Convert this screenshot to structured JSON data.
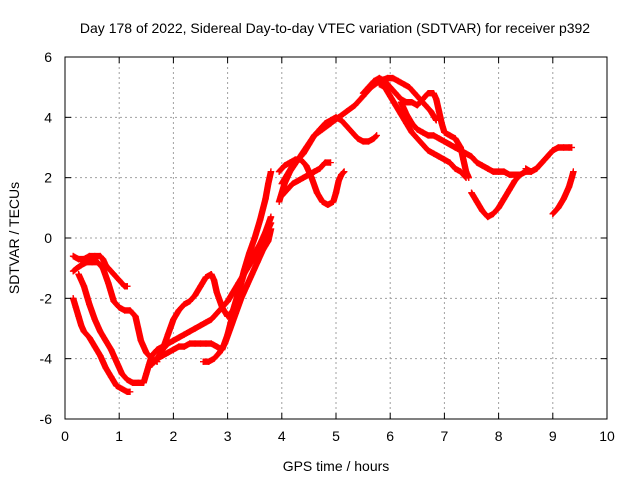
{
  "chart_data": {
    "type": "scatter",
    "title": "Day 178 of 2022, Sidereal Day-to-day VTEC variation (SDTVAR) for receiver p392",
    "xlabel": "GPS time / hours",
    "ylabel": "SDTVAR / TECUs",
    "xlim": [
      0,
      10
    ],
    "ylim": [
      -6,
      6
    ],
    "xticks": [
      "0",
      "1",
      "2",
      "3",
      "4",
      "5",
      "6",
      "7",
      "8",
      "9",
      "10"
    ],
    "yticks": [
      "-6",
      "-4",
      "-2",
      "0",
      "2",
      "4",
      "6"
    ],
    "grid": true,
    "legend": "none",
    "marker": "plus",
    "series_color": "#ff0000",
    "series": [
      {
        "points": [
          [
            0.15,
            -0.6
          ],
          [
            0.25,
            -0.7
          ],
          [
            0.35,
            -0.7
          ],
          [
            0.45,
            -0.6
          ],
          [
            0.55,
            -0.6
          ],
          [
            0.65,
            -0.6
          ],
          [
            0.7,
            -0.7
          ],
          [
            0.75,
            -0.9
          ],
          [
            0.8,
            -1.0
          ],
          [
            0.9,
            -1.2
          ],
          [
            1.0,
            -1.4
          ],
          [
            1.1,
            -1.6
          ],
          [
            1.15,
            -1.6
          ]
        ]
      },
      {
        "points": [
          [
            0.15,
            -1.1
          ],
          [
            0.22,
            -1.0
          ],
          [
            0.3,
            -0.9
          ],
          [
            0.4,
            -0.8
          ],
          [
            0.5,
            -0.8
          ],
          [
            0.6,
            -0.8
          ],
          [
            0.7,
            -1.0
          ],
          [
            0.8,
            -1.5
          ],
          [
            0.9,
            -2.1
          ],
          [
            1.0,
            -2.3
          ],
          [
            1.1,
            -2.4
          ],
          [
            1.2,
            -2.4
          ],
          [
            1.3,
            -2.6
          ],
          [
            1.35,
            -3.0
          ],
          [
            1.4,
            -3.4
          ],
          [
            1.5,
            -3.8
          ],
          [
            1.6,
            -4.0
          ],
          [
            1.7,
            -4.1
          ]
        ]
      },
      {
        "points": [
          [
            0.15,
            -2.0
          ],
          [
            0.2,
            -2.3
          ],
          [
            0.25,
            -2.6
          ],
          [
            0.3,
            -2.9
          ],
          [
            0.35,
            -3.1
          ],
          [
            0.45,
            -3.3
          ],
          [
            0.55,
            -3.6
          ],
          [
            0.65,
            -3.9
          ],
          [
            0.75,
            -4.3
          ],
          [
            0.85,
            -4.6
          ],
          [
            0.95,
            -4.9
          ],
          [
            1.05,
            -5.0
          ],
          [
            1.15,
            -5.1
          ],
          [
            1.2,
            -5.1
          ]
        ]
      },
      {
        "points": [
          [
            0.25,
            -1.2
          ],
          [
            0.35,
            -1.6
          ],
          [
            0.45,
            -2.2
          ],
          [
            0.55,
            -2.7
          ],
          [
            0.65,
            -3.1
          ],
          [
            0.75,
            -3.4
          ],
          [
            0.85,
            -3.7
          ],
          [
            0.95,
            -4.1
          ],
          [
            1.05,
            -4.5
          ],
          [
            1.15,
            -4.7
          ],
          [
            1.25,
            -4.8
          ],
          [
            1.35,
            -4.8
          ],
          [
            1.45,
            -4.8
          ],
          [
            1.5,
            -4.5
          ],
          [
            1.55,
            -4.2
          ],
          [
            1.6,
            -3.9
          ],
          [
            1.7,
            -3.7
          ],
          [
            1.8,
            -3.6
          ]
        ]
      },
      {
        "points": [
          [
            1.7,
            -4.0
          ],
          [
            1.8,
            -3.7
          ],
          [
            1.9,
            -3.5
          ],
          [
            2.0,
            -3.4
          ],
          [
            2.1,
            -3.3
          ],
          [
            2.2,
            -3.2
          ],
          [
            2.3,
            -3.1
          ],
          [
            2.4,
            -3.0
          ],
          [
            2.5,
            -2.9
          ],
          [
            2.6,
            -2.8
          ],
          [
            2.7,
            -2.7
          ],
          [
            2.8,
            -2.5
          ],
          [
            2.9,
            -2.3
          ],
          [
            3.0,
            -2.1
          ],
          [
            3.1,
            -1.8
          ],
          [
            3.2,
            -1.5
          ],
          [
            3.3,
            -1.2
          ],
          [
            3.4,
            -0.9
          ],
          [
            3.5,
            -0.6
          ],
          [
            3.6,
            -0.3
          ],
          [
            3.7,
            0.1
          ],
          [
            3.8,
            0.5
          ]
        ]
      },
      {
        "points": [
          [
            1.8,
            -3.7
          ],
          [
            1.9,
            -3.2
          ],
          [
            2.0,
            -2.7
          ],
          [
            2.1,
            -2.4
          ],
          [
            2.2,
            -2.2
          ],
          [
            2.3,
            -2.1
          ],
          [
            2.4,
            -1.9
          ],
          [
            2.5,
            -1.6
          ],
          [
            2.6,
            -1.3
          ],
          [
            2.7,
            -1.2
          ],
          [
            2.75,
            -1.4
          ],
          [
            2.8,
            -1.8
          ],
          [
            2.9,
            -2.3
          ],
          [
            3.0,
            -2.6
          ],
          [
            3.1,
            -2.4
          ],
          [
            3.2,
            -1.8
          ],
          [
            3.3,
            -1.1
          ],
          [
            3.4,
            -0.5
          ],
          [
            3.5,
            0.0
          ],
          [
            3.6,
            0.6
          ],
          [
            3.7,
            1.3
          ],
          [
            3.75,
            1.8
          ],
          [
            3.8,
            2.2
          ]
        ]
      },
      {
        "points": [
          [
            1.6,
            -4.2
          ],
          [
            1.7,
            -4.0
          ],
          [
            1.8,
            -3.9
          ],
          [
            1.9,
            -3.8
          ],
          [
            2.0,
            -3.7
          ],
          [
            2.1,
            -3.6
          ],
          [
            2.2,
            -3.6
          ],
          [
            2.3,
            -3.5
          ],
          [
            2.4,
            -3.5
          ],
          [
            2.5,
            -3.5
          ],
          [
            2.6,
            -3.5
          ],
          [
            2.7,
            -3.5
          ],
          [
            2.8,
            -3.6
          ],
          [
            2.9,
            -3.7
          ],
          [
            3.0,
            -3.2
          ],
          [
            3.1,
            -2.5
          ],
          [
            3.2,
            -1.8
          ],
          [
            3.3,
            -1.2
          ],
          [
            3.4,
            -0.8
          ],
          [
            3.5,
            -0.5
          ],
          [
            3.6,
            -0.2
          ],
          [
            3.7,
            0.2
          ],
          [
            3.8,
            0.7
          ]
        ]
      },
      {
        "points": [
          [
            2.55,
            -4.1
          ],
          [
            2.65,
            -4.1
          ],
          [
            2.75,
            -4.0
          ],
          [
            2.85,
            -3.8
          ],
          [
            2.95,
            -3.5
          ],
          [
            3.05,
            -3.0
          ],
          [
            3.15,
            -2.5
          ],
          [
            3.25,
            -2.0
          ],
          [
            3.35,
            -1.6
          ],
          [
            3.45,
            -1.2
          ],
          [
            3.55,
            -0.8
          ],
          [
            3.65,
            -0.4
          ],
          [
            3.75,
            -0.1
          ],
          [
            3.8,
            0.3
          ]
        ]
      },
      {
        "points": [
          [
            3.95,
            1.2
          ],
          [
            4.05,
            1.8
          ],
          [
            4.15,
            2.2
          ],
          [
            4.3,
            2.6
          ],
          [
            4.45,
            3.0
          ],
          [
            4.6,
            3.4
          ],
          [
            4.75,
            3.6
          ],
          [
            4.9,
            3.8
          ],
          [
            5.05,
            4.0
          ],
          [
            5.2,
            4.2
          ],
          [
            5.35,
            4.4
          ],
          [
            5.5,
            4.7
          ],
          [
            5.65,
            5.0
          ],
          [
            5.8,
            5.2
          ],
          [
            5.95,
            5.3
          ],
          [
            6.05,
            5.3
          ],
          [
            6.15,
            5.2
          ],
          [
            6.25,
            5.1
          ],
          [
            6.35,
            5.0
          ],
          [
            6.45,
            4.8
          ],
          [
            6.55,
            4.6
          ],
          [
            6.65,
            4.4
          ],
          [
            6.75,
            4.2
          ],
          [
            6.85,
            3.9
          ]
        ]
      },
      {
        "points": [
          [
            4.0,
            1.8
          ],
          [
            4.1,
            2.1
          ],
          [
            4.2,
            2.4
          ],
          [
            4.3,
            2.6
          ],
          [
            4.4,
            2.8
          ],
          [
            4.5,
            3.1
          ],
          [
            4.6,
            3.4
          ],
          [
            4.7,
            3.6
          ],
          [
            4.8,
            3.8
          ],
          [
            4.9,
            3.9
          ],
          [
            5.0,
            4.0
          ],
          [
            5.1,
            3.9
          ],
          [
            5.2,
            3.7
          ],
          [
            5.3,
            3.5
          ],
          [
            5.4,
            3.3
          ],
          [
            5.5,
            3.2
          ],
          [
            5.6,
            3.2
          ],
          [
            5.7,
            3.3
          ],
          [
            5.75,
            3.4
          ]
        ]
      },
      {
        "points": [
          [
            3.95,
            2.2
          ],
          [
            4.05,
            2.4
          ],
          [
            4.15,
            2.5
          ],
          [
            4.25,
            2.6
          ],
          [
            4.35,
            2.6
          ],
          [
            4.45,
            2.4
          ],
          [
            4.55,
            2.0
          ],
          [
            4.65,
            1.5
          ],
          [
            4.75,
            1.2
          ],
          [
            4.85,
            1.1
          ],
          [
            4.95,
            1.2
          ],
          [
            5.0,
            1.5
          ],
          [
            5.05,
            1.9
          ],
          [
            5.1,
            2.1
          ],
          [
            5.15,
            2.2
          ]
        ]
      },
      {
        "points": [
          [
            4.0,
            1.4
          ],
          [
            4.1,
            1.6
          ],
          [
            4.2,
            1.8
          ],
          [
            4.3,
            1.9
          ],
          [
            4.4,
            2.0
          ],
          [
            4.5,
            2.1
          ],
          [
            4.6,
            2.2
          ],
          [
            4.7,
            2.3
          ],
          [
            4.8,
            2.5
          ],
          [
            4.9,
            2.5
          ]
        ]
      },
      {
        "points": [
          [
            5.5,
            4.8
          ],
          [
            5.6,
            5.0
          ],
          [
            5.7,
            5.2
          ],
          [
            5.8,
            5.3
          ],
          [
            5.9,
            5.2
          ],
          [
            6.0,
            5.0
          ],
          [
            6.1,
            4.8
          ],
          [
            6.2,
            4.6
          ],
          [
            6.3,
            4.5
          ],
          [
            6.4,
            4.5
          ],
          [
            6.5,
            4.4
          ],
          [
            6.6,
            4.6
          ],
          [
            6.7,
            4.8
          ],
          [
            6.8,
            4.8
          ],
          [
            6.85,
            4.6
          ],
          [
            6.9,
            4.2
          ],
          [
            6.95,
            3.8
          ],
          [
            7.0,
            3.5
          ],
          [
            7.1,
            3.4
          ],
          [
            7.2,
            3.3
          ],
          [
            7.3,
            3.0
          ],
          [
            7.35,
            2.6
          ],
          [
            7.4,
            2.2
          ],
          [
            7.45,
            2.0
          ]
        ]
      },
      {
        "points": [
          [
            5.8,
            5.1
          ],
          [
            5.9,
            5.0
          ],
          [
            6.0,
            4.7
          ],
          [
            6.1,
            4.4
          ],
          [
            6.2,
            4.1
          ],
          [
            6.3,
            3.8
          ],
          [
            6.4,
            3.5
          ],
          [
            6.5,
            3.3
          ],
          [
            6.6,
            3.1
          ],
          [
            6.7,
            2.9
          ],
          [
            6.8,
            2.8
          ],
          [
            6.9,
            2.7
          ],
          [
            7.0,
            2.6
          ],
          [
            7.1,
            2.5
          ],
          [
            7.2,
            2.3
          ],
          [
            7.3,
            2.2
          ],
          [
            7.4,
            2.0
          ]
        ]
      },
      {
        "points": [
          [
            6.2,
            4.5
          ],
          [
            6.3,
            4.1
          ],
          [
            6.4,
            3.8
          ],
          [
            6.5,
            3.6
          ],
          [
            6.6,
            3.5
          ],
          [
            6.7,
            3.4
          ],
          [
            6.8,
            3.4
          ],
          [
            6.9,
            3.3
          ],
          [
            7.0,
            3.2
          ],
          [
            7.1,
            3.1
          ],
          [
            7.2,
            3.0
          ],
          [
            7.3,
            2.9
          ],
          [
            7.4,
            2.8
          ],
          [
            7.5,
            2.7
          ],
          [
            7.6,
            2.5
          ],
          [
            7.7,
            2.4
          ],
          [
            7.8,
            2.3
          ],
          [
            7.9,
            2.2
          ],
          [
            8.0,
            2.2
          ],
          [
            8.1,
            2.2
          ],
          [
            8.2,
            2.1
          ],
          [
            8.3,
            2.1
          ],
          [
            8.4,
            2.1
          ],
          [
            8.5,
            2.2
          ],
          [
            8.6,
            2.2
          ],
          [
            8.7,
            2.3
          ],
          [
            8.8,
            2.5
          ],
          [
            8.9,
            2.7
          ],
          [
            9.0,
            2.9
          ],
          [
            9.1,
            3.0
          ],
          [
            9.2,
            3.0
          ],
          [
            9.3,
            3.0
          ],
          [
            9.35,
            3.0
          ]
        ]
      },
      {
        "points": [
          [
            7.5,
            1.5
          ],
          [
            7.6,
            1.2
          ],
          [
            7.7,
            0.9
          ],
          [
            7.8,
            0.7
          ],
          [
            7.9,
            0.8
          ],
          [
            8.0,
            1.0
          ],
          [
            8.1,
            1.3
          ],
          [
            8.2,
            1.6
          ],
          [
            8.3,
            1.9
          ],
          [
            8.35,
            2.0
          ]
        ]
      },
      {
        "points": [
          [
            8.5,
            2.3
          ],
          [
            8.6,
            2.2
          ],
          [
            8.7,
            2.3
          ],
          [
            8.8,
            2.5
          ],
          [
            8.9,
            2.7
          ],
          [
            9.0,
            2.9
          ]
        ]
      },
      {
        "points": [
          [
            9.0,
            0.8
          ],
          [
            9.1,
            1.0
          ],
          [
            9.2,
            1.3
          ],
          [
            9.3,
            1.7
          ],
          [
            9.35,
            2.0
          ],
          [
            9.38,
            2.2
          ]
        ]
      }
    ]
  }
}
